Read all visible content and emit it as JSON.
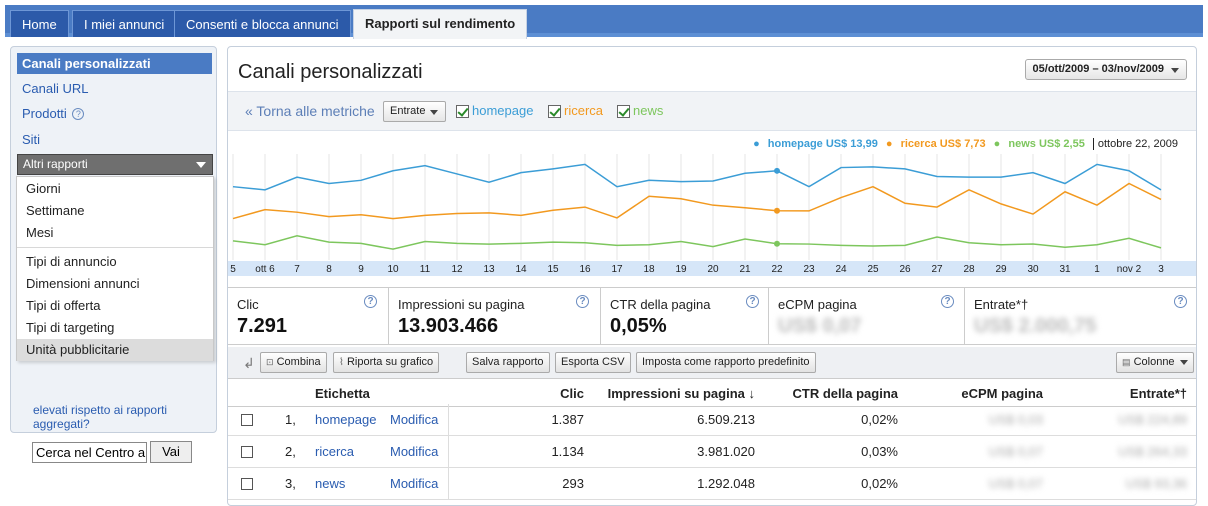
{
  "tabs": [
    "Home",
    "I miei annunci",
    "Consenti e blocca annunci",
    "Rapporti sul rendimento"
  ],
  "sidebar": {
    "items": [
      "Canali personalizzati",
      "Canali URL",
      "Prodotti",
      "Siti"
    ],
    "altri_rapporti": "Altri rapporti",
    "dropdown": [
      "Giorni",
      "Settimane",
      "Mesi",
      "Tipi di annuncio",
      "Dimensioni annunci",
      "Tipi di offerta",
      "Tipi di targeting",
      "Unità pubblicitarie"
    ],
    "cut_text": "elevati rispetto ai rapporti aggregati?",
    "search_value": "Cerca nel Centro a",
    "search_button": "Vai"
  },
  "main": {
    "title": "Canali personalizzati",
    "date_range": "05/ott/2009 – 03/nov/2009",
    "back_link": "« Torna alle metriche",
    "metric_select": "Entrate",
    "filters": [
      "homepage",
      "ricerca",
      "news"
    ],
    "legend": {
      "homepage": "homepage US$ 13,99",
      "ricerca": "ricerca US$ 7,73",
      "news": "news US$ 2,55",
      "date": "ottobre 22, 2009"
    },
    "kpis": [
      {
        "label": "Clic",
        "value": "7.291"
      },
      {
        "label": "Impressioni su pagina",
        "value": "13.903.466"
      },
      {
        "label": "CTR della pagina",
        "value": "0,05%"
      },
      {
        "label": "eCPM pagina",
        "value": "US$ 0,07"
      },
      {
        "label": "Entrate*†",
        "value": "US$ 2.000,75"
      }
    ],
    "toolbar": {
      "combina": "Combina",
      "riporta": "Riporta su grafico",
      "salva": "Salva rapporto",
      "esporta": "Esporta CSV",
      "imposta": "Imposta come rapporto predefinito",
      "colonne": "Colonne"
    },
    "table": {
      "headers": [
        "Etichetta",
        "Clic",
        "Impressioni su pagina ↓",
        "CTR della pagina",
        "eCPM pagina",
        "Entrate*†"
      ],
      "rows": [
        {
          "num": "1,",
          "label": "homepage",
          "edit": "Modifica",
          "clic": "1.387",
          "impr": "6.509.213",
          "ctr": "0,02%",
          "ecpm": "US$ 0,03",
          "entrate": "US$ 224,89"
        },
        {
          "num": "2,",
          "label": "ricerca",
          "edit": "Modifica",
          "clic": "1.134",
          "impr": "3.981.020",
          "ctr": "0,03%",
          "ecpm": "US$ 0,07",
          "entrate": "US$ 264,33"
        },
        {
          "num": "3,",
          "label": "news",
          "edit": "Modifica",
          "clic": "293",
          "impr": "1.292.048",
          "ctr": "0,02%",
          "ecpm": "US$ 0,07",
          "entrate": "US$ 93,36"
        }
      ]
    }
  },
  "chart_data": {
    "type": "line",
    "x_labels": [
      "5",
      "ott 6",
      "7",
      "8",
      "9",
      "10",
      "11",
      "12",
      "13",
      "14",
      "15",
      "16",
      "17",
      "18",
      "19",
      "20",
      "21",
      "22",
      "23",
      "24",
      "25",
      "26",
      "27",
      "28",
      "29",
      "30",
      "31",
      "1",
      "nov 2",
      "3"
    ],
    "series": [
      {
        "name": "homepage",
        "color": "#3b9dd6",
        "values": [
          11.5,
          11.0,
          13.0,
          12.0,
          12.5,
          14.0,
          14.8,
          13.5,
          12.2,
          13.7,
          14.3,
          15.0,
          11.5,
          12.5,
          12.3,
          12.4,
          13.6,
          13.99,
          11.5,
          14.5,
          14.6,
          14.3,
          13.1,
          13.0,
          13.0,
          13.7,
          12.0,
          15.0,
          14.0,
          11.0
        ]
      },
      {
        "name": "ricerca",
        "color": "#f2991f",
        "values": [
          6.5,
          7.9,
          7.5,
          6.8,
          7.1,
          6.5,
          7.0,
          7.3,
          7.4,
          7.0,
          7.8,
          8.3,
          6.6,
          10.0,
          9.6,
          8.6,
          8.2,
          7.73,
          7.7,
          9.8,
          11.5,
          8.9,
          8.3,
          11.0,
          8.8,
          7.2,
          10.7,
          8.6,
          12.0,
          9.5
        ]
      },
      {
        "name": "news",
        "color": "#7dc65d",
        "values": [
          3.0,
          2.4,
          3.8,
          2.8,
          2.6,
          1.7,
          2.9,
          2.6,
          2.5,
          2.6,
          2.8,
          2.7,
          2.3,
          2.4,
          2.9,
          2.1,
          3.3,
          2.55,
          2.5,
          2.3,
          2.2,
          2.3,
          3.6,
          2.7,
          2.4,
          2.5,
          2.0,
          2.4,
          3.4,
          1.9
        ]
      }
    ],
    "ylim": [
      0,
      16
    ],
    "grid": true
  }
}
